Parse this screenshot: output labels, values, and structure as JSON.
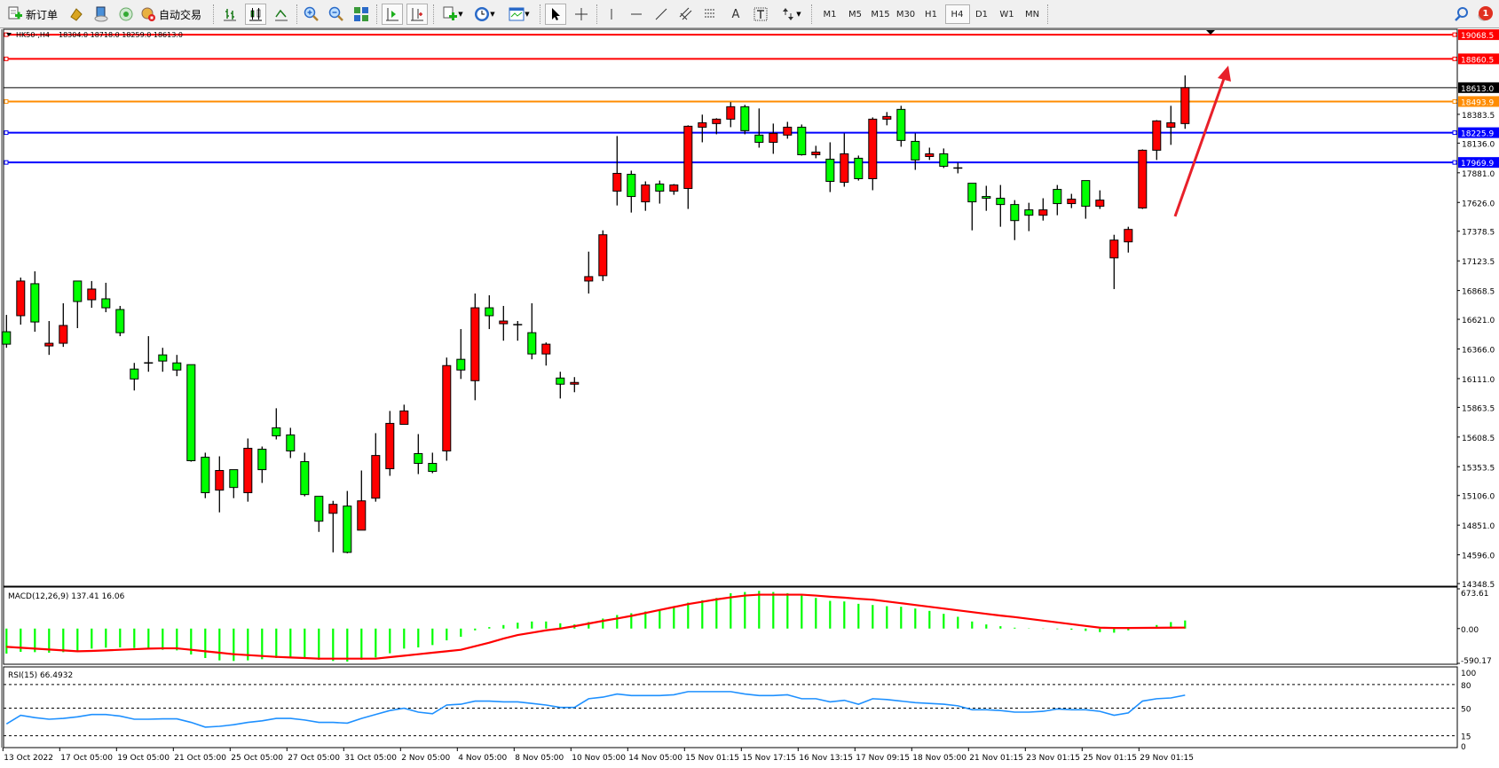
{
  "toolbar": {
    "new_order_label": "新订单",
    "auto_trading_label": "自动交易",
    "timeframes": [
      "M1",
      "M5",
      "M15",
      "M30",
      "H1",
      "H4",
      "D1",
      "W1",
      "MN"
    ],
    "active_timeframe": "H4",
    "notification_count": "1"
  },
  "chart_info": {
    "symbol_label": "HK50-,H4",
    "ohlc_label": "18304.0 18718.0 18259.0 18613.0"
  },
  "colors": {
    "bull": "#ff0000",
    "bear": "#00ff00",
    "resistance": "#ff0000",
    "orange_level": "#ff8c00",
    "support": "#0000ff",
    "bid": "#000000",
    "macd_hist": "#00ff00",
    "macd_signal": "#ff0000",
    "rsi": "#1e90ff",
    "arrow": "#e8202a"
  },
  "chart_data": [
    {
      "type": "candlestick",
      "price_axis_range": [
        14326,
        19115
      ],
      "time_labels": [
        "13 Oct 2022",
        "17 Oct 05:00",
        "19 Oct 05:00",
        "21 Oct 05:00",
        "25 Oct 05:00",
        "27 Oct 05:00",
        "31 Oct 05:00",
        "2 Nov 05:00",
        "4 Nov 05:00",
        "8 Nov 05:00",
        "10 Nov 05:00",
        "14 Nov 05:00",
        "15 Nov 01:15",
        "15 Nov 17:15",
        "16 Nov 13:15",
        "17 Nov 09:15",
        "18 Nov 05:00",
        "21 Nov 01:15",
        "23 Nov 01:15",
        "25 Nov 01:15",
        "29 Nov 01:15"
      ],
      "bars_per_time_label": 4,
      "price_ticks": [
        "18383.5",
        "18136.0",
        "17881.0",
        "17626.0",
        "17378.5",
        "17123.5",
        "16868.5",
        "16621.0",
        "16366.0",
        "16111.0",
        "15863.5",
        "15608.5",
        "15353.5",
        "15106.0",
        "14851.0",
        "14596.0",
        "14348.5"
      ],
      "horizontal_lines": [
        {
          "price": "19068.5",
          "color": "#ff0000",
          "kind": "resistance"
        },
        {
          "price": "18860.5",
          "color": "#ff0000",
          "kind": "resistance"
        },
        {
          "price": "18613.0",
          "color": "#000000",
          "kind": "bid"
        },
        {
          "price": "18493.9",
          "color": "#ff8c00",
          "kind": "level"
        },
        {
          "price": "18225.9",
          "color": "#0000ff",
          "kind": "support"
        },
        {
          "price": "17969.9",
          "color": "#0000ff",
          "kind": "support"
        }
      ],
      "ohlc": [
        [
          16514,
          16659,
          16376,
          16407
        ],
        [
          16652,
          16980,
          16575,
          16950
        ],
        [
          16927,
          17034,
          16514,
          16598
        ],
        [
          16392,
          16606,
          16315,
          16415
        ],
        [
          16415,
          16759,
          16384,
          16568
        ],
        [
          16950,
          16950,
          16545,
          16774
        ],
        [
          16789,
          16950,
          16720,
          16881
        ],
        [
          16797,
          16935,
          16682,
          16720
        ],
        [
          16705,
          16736,
          16476,
          16506
        ],
        [
          16193,
          16246,
          16009,
          16108
        ],
        [
          16246,
          16476,
          16170,
          16246
        ],
        [
          16315,
          16376,
          16170,
          16262
        ],
        [
          16246,
          16315,
          16132,
          16185
        ],
        [
          16231,
          16231,
          15397,
          15405
        ],
        [
          15435,
          15474,
          15083,
          15130
        ],
        [
          15152,
          15443,
          14961,
          15321
        ],
        [
          15328,
          15328,
          15083,
          15175
        ],
        [
          15130,
          15596,
          15053,
          15512
        ],
        [
          15504,
          15527,
          15214,
          15328
        ],
        [
          15688,
          15856,
          15588,
          15619
        ],
        [
          15627,
          15688,
          15428,
          15489
        ],
        [
          15397,
          15474,
          15099,
          15114
        ],
        [
          15099,
          15099,
          14793,
          14885
        ],
        [
          14953,
          15060,
          14617,
          15030
        ],
        [
          15015,
          15145,
          14609,
          14617
        ],
        [
          14808,
          15321,
          14808,
          15060
        ],
        [
          15083,
          15642,
          15053,
          15450
        ],
        [
          15336,
          15833,
          15275,
          15726
        ],
        [
          15718,
          15887,
          15718,
          15833
        ],
        [
          15466,
          15634,
          15290,
          15382
        ],
        [
          15382,
          15474,
          15298,
          15313
        ],
        [
          15489,
          16292,
          15405,
          16223
        ],
        [
          16277,
          16537,
          16108,
          16185
        ],
        [
          16093,
          16843,
          15925,
          16720
        ],
        [
          16720,
          16828,
          16537,
          16652
        ],
        [
          16583,
          16736,
          16437,
          16606
        ],
        [
          16575,
          16606,
          16437,
          16575
        ],
        [
          16506,
          16759,
          16277,
          16323
        ],
        [
          16323,
          16422,
          16223,
          16407
        ],
        [
          16116,
          16170,
          15940,
          16063
        ],
        [
          16063,
          16124,
          15994,
          16078
        ],
        [
          16950,
          17203,
          16843,
          16988
        ],
        [
          16996,
          17386,
          16950,
          17348
        ],
        [
          17723,
          18197,
          17600,
          17876
        ],
        [
          17868,
          17899,
          17539,
          17677
        ],
        [
          17631,
          17807,
          17554,
          17776
        ],
        [
          17784,
          17814,
          17616,
          17723
        ],
        [
          17723,
          17784,
          17692,
          17776
        ],
        [
          17746,
          18289,
          17570,
          18281
        ],
        [
          18273,
          18381,
          18143,
          18311
        ],
        [
          18304,
          18350,
          18212,
          18342
        ],
        [
          18342,
          18488,
          18273,
          18449
        ],
        [
          18449,
          18465,
          18212,
          18243
        ],
        [
          18205,
          18434,
          18097,
          18143
        ],
        [
          18143,
          18304,
          18044,
          18220
        ],
        [
          18205,
          18319,
          18174,
          18273
        ],
        [
          18273,
          18296,
          18029,
          18036
        ],
        [
          18036,
          18113,
          18006,
          18059
        ],
        [
          17998,
          18143,
          17715,
          17807
        ],
        [
          17799,
          18220,
          17761,
          18044
        ],
        [
          18006,
          18029,
          17814,
          17830
        ],
        [
          17830,
          18357,
          17731,
          18342
        ],
        [
          18342,
          18403,
          18289,
          18365
        ],
        [
          18426,
          18457,
          18105,
          18159
        ],
        [
          18151,
          18220,
          17906,
          17991
        ],
        [
          18021,
          18097,
          17991,
          18044
        ],
        [
          18044,
          18090,
          17922,
          17937
        ],
        [
          17922,
          17968,
          17876,
          17922
        ],
        [
          17791,
          17791,
          17386,
          17631
        ],
        [
          17677,
          17769,
          17554,
          17662
        ],
        [
          17662,
          17776,
          17417,
          17608
        ],
        [
          17608,
          17646,
          17302,
          17470
        ],
        [
          17562,
          17623,
          17379,
          17516
        ],
        [
          17516,
          17662,
          17470,
          17562
        ],
        [
          17738,
          17776,
          17516,
          17616
        ],
        [
          17616,
          17700,
          17577,
          17654
        ],
        [
          17814,
          17814,
          17486,
          17593
        ],
        [
          17593,
          17730,
          17570,
          17646
        ],
        [
          17149,
          17348,
          16881,
          17302
        ],
        [
          17287,
          17417,
          17195,
          17394
        ],
        [
          17578,
          18082,
          17570,
          18075
        ],
        [
          18075,
          18334,
          17991,
          18327
        ],
        [
          18273,
          18457,
          18121,
          18311
        ],
        [
          18304,
          18718,
          18259,
          18613
        ]
      ]
    },
    {
      "type": "bar",
      "label": "MACD(12,26,9) 137.41 16.06",
      "range": [
        -590.17,
        673.61
      ],
      "axis_labels": [
        "673.61",
        "0.00",
        "-590.17"
      ],
      "histogram": [
        -425,
        -395,
        -400,
        -410,
        -400,
        -380,
        -340,
        -325,
        -320,
        -330,
        -350,
        -360,
        -370,
        -440,
        -500,
        -540,
        -550,
        -540,
        -520,
        -500,
        -500,
        -510,
        -530,
        -550,
        -560,
        -530,
        -490,
        -420,
        -340,
        -320,
        -280,
        -200,
        -140,
        -30,
        25,
        60,
        100,
        120,
        120,
        90,
        70,
        110,
        170,
        230,
        260,
        290,
        320,
        370,
        440,
        480,
        520,
        600,
        620,
        640,
        620,
        600,
        560,
        520,
        470,
        460,
        420,
        400,
        380,
        370,
        340,
        300,
        250,
        200,
        120,
        70,
        40,
        15,
        5,
        -5,
        -10,
        -20,
        -40,
        -60,
        -70,
        -30,
        20,
        60,
        110,
        137.41
      ],
      "signal": [
        -310,
        -325,
        -340,
        -355,
        -370,
        -385,
        -380,
        -370,
        -360,
        -350,
        -340,
        -335,
        -335,
        -360,
        -385,
        -410,
        -435,
        -450,
        -465,
        -480,
        -490,
        -500,
        -510,
        -510,
        -510,
        -510,
        -510,
        -485,
        -460,
        -435,
        -410,
        -385,
        -360,
        -300,
        -240,
        -170,
        -110,
        -70,
        -30,
        0,
        40,
        85,
        130,
        170,
        215,
        265,
        315,
        365,
        415,
        455,
        495,
        530,
        560,
        575,
        575,
        575,
        575,
        560,
        540,
        525,
        505,
        490,
        460,
        430,
        400,
        370,
        340,
        310,
        280,
        250,
        220,
        195,
        165,
        135,
        105,
        75,
        45,
        15,
        10,
        10,
        12,
        14,
        15,
        16.06
      ]
    },
    {
      "type": "line",
      "label": "RSI(15) 66.4932",
      "range": [
        0,
        100
      ],
      "axis_labels": [
        "100",
        "80",
        "50",
        "15",
        "0"
      ],
      "levels": [
        80,
        50,
        15
      ],
      "values": [
        30,
        41,
        38,
        36,
        37,
        39,
        42,
        42,
        40,
        36,
        36,
        36.5,
        36.5,
        32,
        26,
        27,
        29,
        32,
        34,
        37,
        37,
        35,
        32,
        32,
        31,
        37,
        42,
        47,
        50,
        45,
        43,
        54,
        55,
        59,
        59,
        58,
        58,
        56,
        54,
        51,
        51,
        62,
        64,
        68,
        66,
        66,
        66,
        67,
        71,
        71,
        71,
        71,
        68,
        66,
        66,
        67,
        62,
        62,
        58,
        60,
        55,
        62,
        61,
        59,
        57,
        56,
        55,
        53,
        48,
        48,
        47,
        45,
        45,
        46,
        49,
        48,
        48,
        46,
        41,
        44,
        59,
        62,
        63,
        66.49
      ]
    }
  ]
}
